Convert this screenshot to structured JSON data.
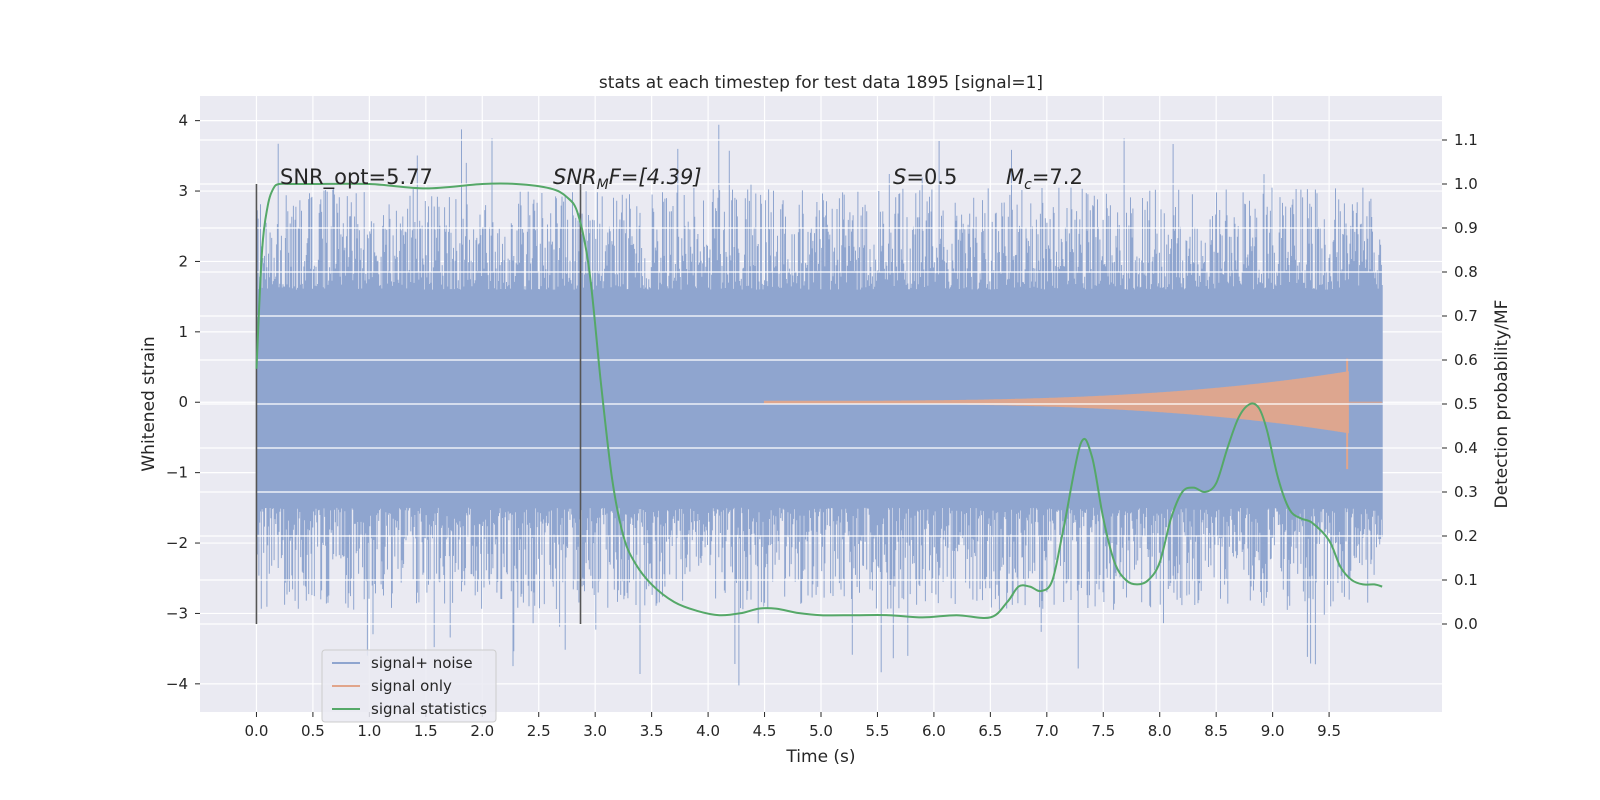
{
  "chart_data": {
    "type": "line",
    "title": "stats at each timestep for test data 1895 [signal=1]",
    "xlabel": "Time (s)",
    "ylabel": "Whitened strain",
    "ylabel_right": "Detection probability/MF",
    "xlim": [
      -0.5,
      10.5
    ],
    "ylim": [
      -4.4,
      4.35
    ],
    "ylim_right": [
      -0.2,
      1.2
    ],
    "x_ticks": [
      "0.0",
      "0.5",
      "1.0",
      "1.5",
      "2.0",
      "2.5",
      "3.0",
      "3.5",
      "4.0",
      "4.5",
      "5.0",
      "5.5",
      "6.0",
      "6.5",
      "7.0",
      "7.5",
      "8.0",
      "8.5",
      "9.0",
      "9.5"
    ],
    "y_ticks": [
      "4",
      "3",
      "2",
      "1",
      "0",
      "−1",
      "−2",
      "−3",
      "−4"
    ],
    "y_ticks_right": [
      "1.1",
      "1.0",
      "0.9",
      "0.8",
      "0.7",
      "0.6",
      "0.5",
      "0.4",
      "0.3",
      "0.2",
      "0.1",
      "0.0"
    ],
    "grid": true,
    "legend_position": "lower-left",
    "annotations": {
      "snr_opt": "SNR_opt=5.77",
      "snr_mf_sym": "SNR",
      "snr_mf_sub": "M",
      "snr_mf_rest": "F=[4.39]",
      "s_sym": "S",
      "s_rest": "=0.5",
      "mc_sym": "M",
      "mc_sub": "c",
      "mc_rest": "=7.2"
    },
    "markers_x": [
      0.0,
      2.87
    ],
    "series": [
      {
        "name": "signal+ noise",
        "color": "#8fa5cf",
        "axis": "left",
        "kind": "noise",
        "x_range": [
          0.0,
          9.97
        ],
        "band": [
          -1.2,
          1.2
        ],
        "spike_max": 3.95,
        "spike_min": -4.05
      },
      {
        "name": "signal only",
        "color": "#e1a58b",
        "axis": "left",
        "kind": "chirp",
        "x_range": [
          4.5,
          9.67
        ],
        "peak_amplitude": 0.62,
        "min_amplitude": -0.95
      },
      {
        "name": "signal statistics",
        "color": "#55a868",
        "axis": "right",
        "x": [
          0.0,
          0.05,
          0.1,
          0.15,
          0.2,
          0.3,
          0.5,
          1.0,
          1.5,
          2.0,
          2.3,
          2.6,
          2.75,
          2.85,
          2.95,
          3.05,
          3.15,
          3.25,
          3.35,
          3.5,
          3.7,
          3.9,
          4.1,
          4.3,
          4.45,
          4.6,
          4.8,
          5.0,
          5.3,
          5.6,
          5.9,
          6.2,
          6.5,
          6.65,
          6.75,
          6.85,
          6.95,
          7.05,
          7.15,
          7.3,
          7.4,
          7.5,
          7.6,
          7.7,
          7.8,
          7.9,
          8.0,
          8.1,
          8.2,
          8.3,
          8.4,
          8.5,
          8.6,
          8.7,
          8.8,
          8.88,
          8.95,
          9.05,
          9.15,
          9.25,
          9.35,
          9.5,
          9.6,
          9.7,
          9.8,
          9.9,
          9.97
        ],
        "values": [
          0.58,
          0.85,
          0.95,
          0.99,
          1.0,
          1.0,
          1.0,
          1.0,
          0.99,
          1.0,
          1.0,
          0.99,
          0.97,
          0.93,
          0.8,
          0.55,
          0.33,
          0.2,
          0.14,
          0.09,
          0.05,
          0.03,
          0.02,
          0.025,
          0.035,
          0.035,
          0.025,
          0.02,
          0.02,
          0.02,
          0.015,
          0.02,
          0.015,
          0.05,
          0.085,
          0.085,
          0.075,
          0.1,
          0.22,
          0.41,
          0.38,
          0.24,
          0.14,
          0.1,
          0.09,
          0.1,
          0.14,
          0.24,
          0.3,
          0.31,
          0.3,
          0.32,
          0.4,
          0.47,
          0.5,
          0.49,
          0.44,
          0.33,
          0.26,
          0.24,
          0.23,
          0.19,
          0.13,
          0.1,
          0.09,
          0.09,
          0.085
        ]
      }
    ]
  }
}
